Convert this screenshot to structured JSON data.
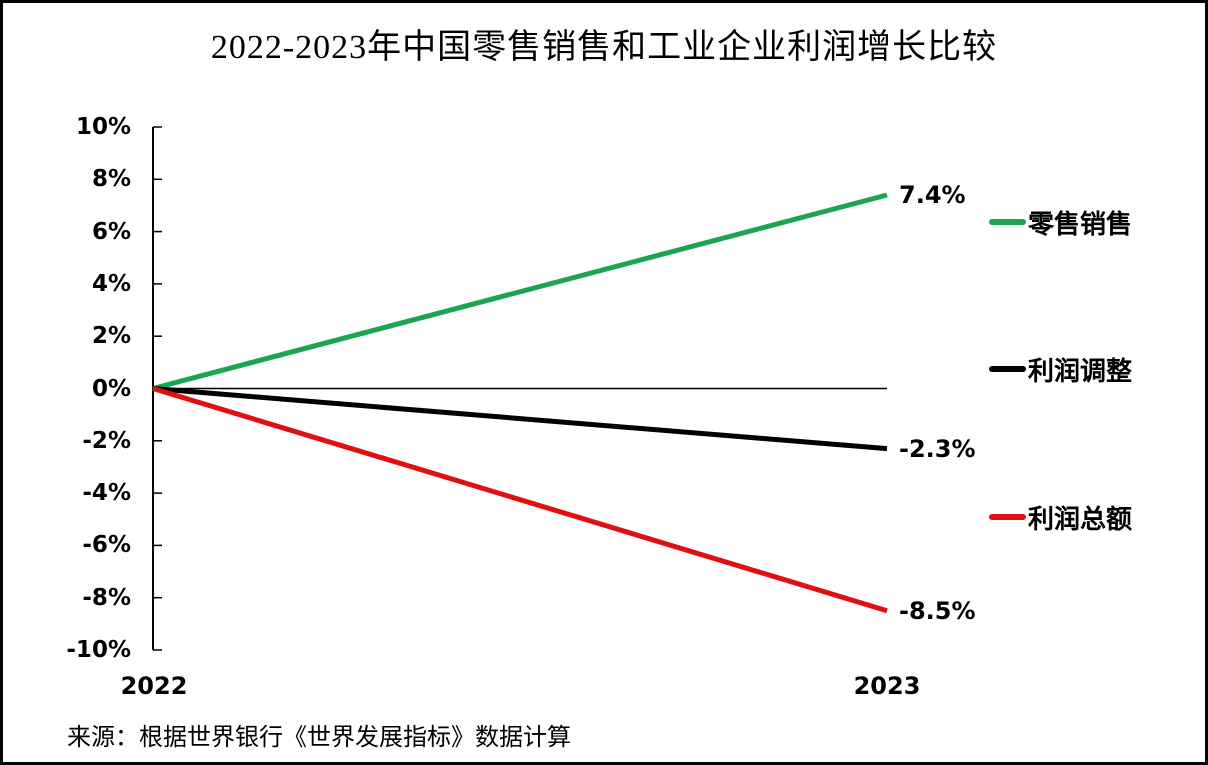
{
  "page": {
    "background": "#ffffff",
    "border_color": "#000000"
  },
  "chart_data": {
    "type": "line",
    "title": "2022-2023年中国零售销售和工业企业利润增长比较",
    "x": [
      2022,
      2023
    ],
    "x_tick_labels": [
      "2022",
      "2023"
    ],
    "series": [
      {
        "name": "零售销售",
        "values": [
          0,
          7.4
        ],
        "color": "#1CA450",
        "end_label": "7.4%"
      },
      {
        "name": "利润调整",
        "values": [
          0,
          -2.3
        ],
        "color": "#000000",
        "end_label": "-2.3%"
      },
      {
        "name": "利润总额",
        "values": [
          0,
          -8.5
        ],
        "color": "#E01010",
        "end_label": "-8.5%"
      }
    ],
    "ylim": [
      -10,
      10
    ],
    "y_tick_step": 2,
    "y_tick_labels": [
      "10%",
      "8%",
      "6%",
      "4%",
      "2%",
      "0%",
      "-2%",
      "-4%",
      "-6%",
      "-8%",
      "-10%"
    ],
    "grid": false,
    "zero_line": true,
    "legend_position": "right",
    "axis_color": "#000000"
  },
  "source_note": "来源：根据世界银行《世界发展指标》数据计算"
}
